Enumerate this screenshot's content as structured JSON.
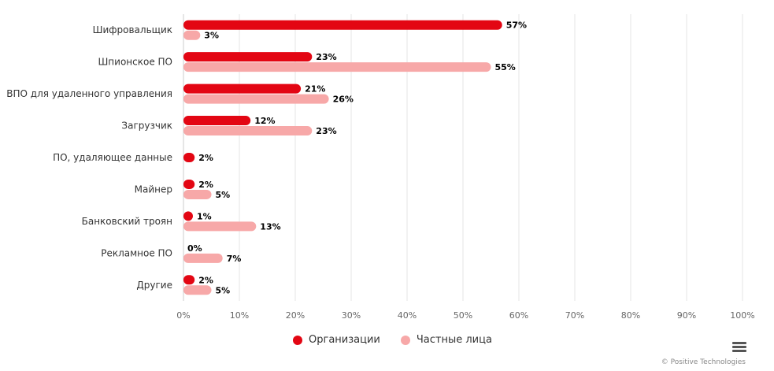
{
  "chart_data": {
    "type": "bar",
    "orientation": "horizontal",
    "categories": [
      "Шифровальщик",
      "Шпионское ПО",
      "ВПО для удаленного управления",
      "Загрузчик",
      "ПО, удаляющее данные",
      "Майнер",
      "Банковский троян",
      "Рекламное ПО",
      "Другие"
    ],
    "series": [
      {
        "name": "Организации",
        "color": "#e30613",
        "values": [
          57,
          23,
          21,
          12,
          2,
          2,
          1,
          0,
          2
        ],
        "labels": [
          "57%",
          "23%",
          "21%",
          "12%",
          "2%",
          "2%",
          "1%",
          "0%",
          "2%"
        ]
      },
      {
        "name": "Частные лица",
        "color": "#f7a8a8",
        "values": [
          3,
          55,
          26,
          23,
          null,
          5,
          13,
          7,
          5
        ],
        "labels": [
          "3%",
          "55%",
          "26%",
          "23%",
          null,
          "5%",
          "13%",
          "7%",
          "5%"
        ]
      }
    ],
    "xlim": [
      0,
      100
    ],
    "xticks": [
      "0%",
      "10%",
      "20%",
      "30%",
      "40%",
      "50%",
      "60%",
      "70%",
      "80%",
      "90%",
      "100%"
    ],
    "xtick_values": [
      0,
      10,
      20,
      30,
      40,
      50,
      60,
      70,
      80,
      90,
      100
    ],
    "grid": true,
    "legend_position": "bottom-center",
    "title": "",
    "xlabel": "",
    "ylabel": ""
  },
  "credits": "© Positive Technologies",
  "menu_icon": "hamburger-menu-icon"
}
